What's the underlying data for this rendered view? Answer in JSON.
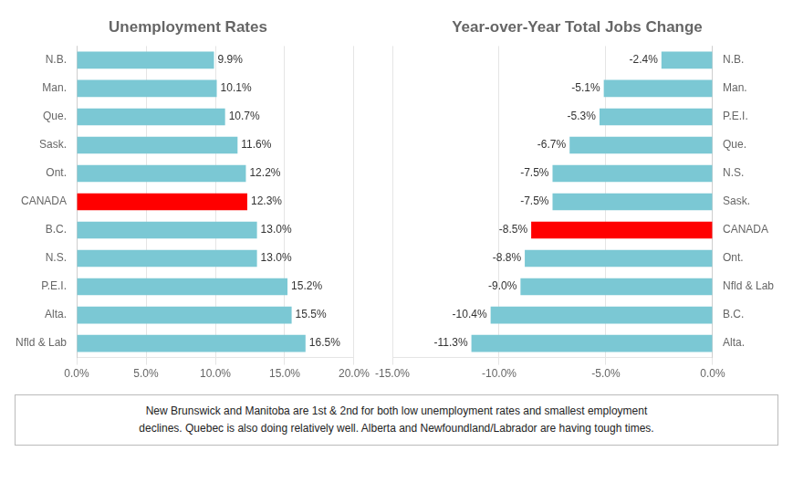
{
  "chart_data": [
    {
      "type": "bar",
      "orientation": "horizontal",
      "title": "Unemployment Rates",
      "categories": [
        "N.B.",
        "Man.",
        "Que.",
        "Sask.",
        "Ont.",
        "CANADA",
        "B.C.",
        "N.S.",
        "P.E.I.",
        "Alta.",
        "Nfld & Lab"
      ],
      "values": [
        9.9,
        10.1,
        10.7,
        11.6,
        12.2,
        12.3,
        13.0,
        13.0,
        15.2,
        15.5,
        16.5
      ],
      "value_labels": [
        "9.9%",
        "10.1%",
        "10.7%",
        "11.6%",
        "12.2%",
        "12.3%",
        "13.0%",
        "13.0%",
        "15.2%",
        "15.5%",
        "16.5%"
      ],
      "colors": [
        "#7BC8D4",
        "#7BC8D4",
        "#7BC8D4",
        "#7BC8D4",
        "#7BC8D4",
        "#FF0000",
        "#7BC8D4",
        "#7BC8D4",
        "#7BC8D4",
        "#7BC8D4",
        "#7BC8D4"
      ],
      "xlim": [
        0,
        20
      ],
      "xticks": [
        {
          "value": 0,
          "label": "0.0%"
        },
        {
          "value": 5,
          "label": "5.0%"
        },
        {
          "value": 10,
          "label": "10.0%"
        },
        {
          "value": 15,
          "label": "15.0%"
        },
        {
          "value": 20,
          "label": "20.0%"
        }
      ],
      "grid": true,
      "data_labels": true
    },
    {
      "type": "bar",
      "orientation": "horizontal",
      "title": "Year-over-Year Total Jobs Change",
      "categories": [
        "N.B.",
        "Man.",
        "P.E.I.",
        "Que.",
        "N.S.",
        "Sask.",
        "CANADA",
        "Ont.",
        "Nfld & Lab",
        "B.C.",
        "Alta."
      ],
      "values": [
        -2.4,
        -5.1,
        -5.3,
        -6.7,
        -7.5,
        -7.5,
        -8.5,
        -8.8,
        -9.0,
        -10.4,
        -11.3
      ],
      "value_labels": [
        "-2.4%",
        "-5.1%",
        "-5.3%",
        "-6.7%",
        "-7.5%",
        "-7.5%",
        "-8.5%",
        "-8.8%",
        "-9.0%",
        "-10.4%",
        "-11.3%"
      ],
      "colors": [
        "#7BC8D4",
        "#7BC8D4",
        "#7BC8D4",
        "#7BC8D4",
        "#7BC8D4",
        "#7BC8D4",
        "#FF0000",
        "#7BC8D4",
        "#7BC8D4",
        "#7BC8D4",
        "#7BC8D4"
      ],
      "xlim": [
        -15,
        0
      ],
      "xticks": [
        {
          "value": -15,
          "label": "-15.0%"
        },
        {
          "value": -10,
          "label": "-10.0%"
        },
        {
          "value": -5,
          "label": "-5.0%"
        },
        {
          "value": 0,
          "label": "0.0%"
        }
      ],
      "grid": true,
      "data_labels": true
    }
  ],
  "annotations": [
    "New Brunswick and Manitoba are 1st & 2nd for both low unemployment rates and smallest employment",
    "declines. Quebec is also doing relatively well. Alberta and Newfoundland/Labrador are  having tough times."
  ]
}
